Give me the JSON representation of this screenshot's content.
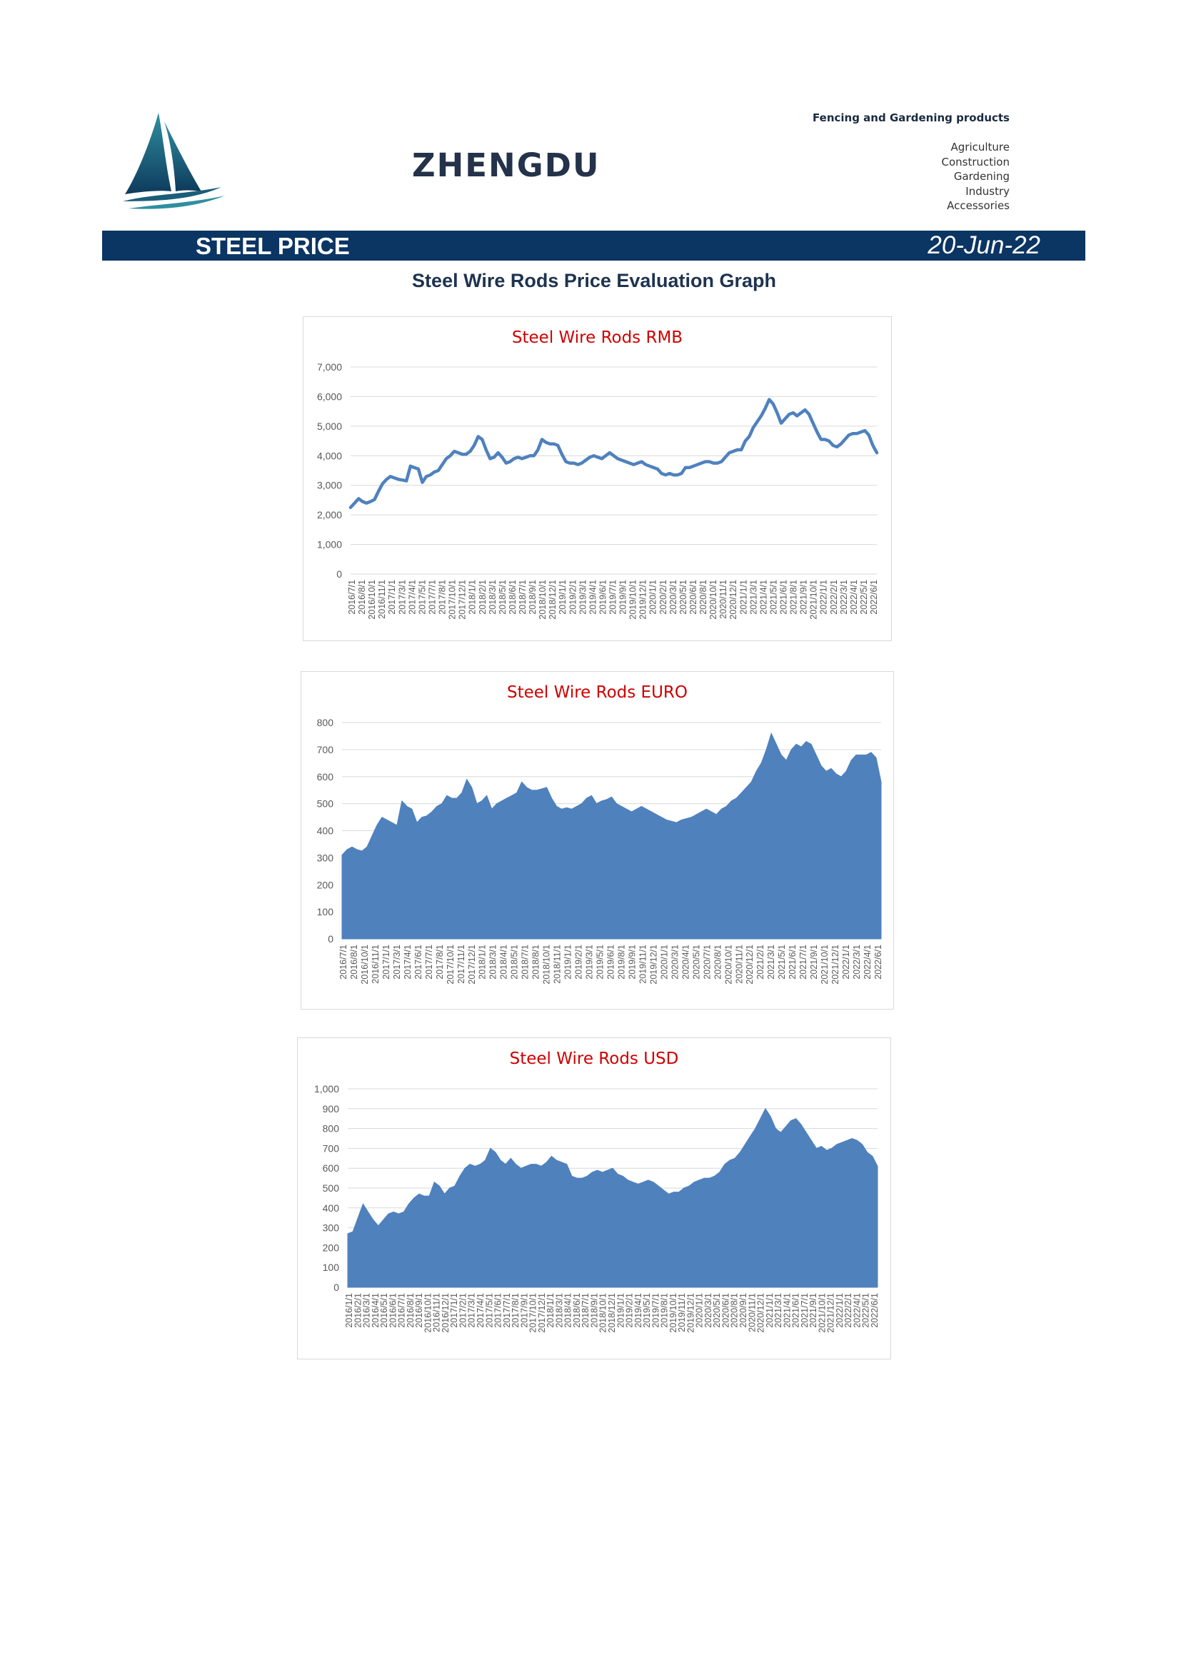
{
  "header": {
    "brand": "ZHENGDU",
    "tagline": "Fencing and Gardening products",
    "categories": [
      "Agriculture",
      "Construction",
      "Gardening",
      "Industry",
      "Accessories"
    ],
    "logo_icon": "sailboat-logo-icon"
  },
  "banner": {
    "title": "STEEL PRICE",
    "date": "20-Jun-22",
    "color": "#0b3563"
  },
  "page_title": "Steel Wire Rods Price Evaluation Graph",
  "chart_data": [
    {
      "id": "rmb",
      "type": "line",
      "title": "Steel Wire Rods RMB",
      "ylim": [
        0,
        7000
      ],
      "yticks": [
        0,
        1000,
        2000,
        3000,
        4000,
        5000,
        6000,
        7000
      ],
      "ytick_labels": [
        "0",
        "1,000",
        "2,000",
        "3,000",
        "4,000",
        "5,000",
        "6,000",
        "7,000"
      ],
      "color": "#4f81bd",
      "xtick_labels": [
        "2016/7/1",
        "2016/8/1",
        "2016/10/1",
        "2016/11/1",
        "2017/1/1",
        "2017/3/1",
        "2017/4/1",
        "2017/5/1",
        "2017/7/1",
        "2017/8/1",
        "2017/10/1",
        "2017/12/1",
        "2018/1/1",
        "2018/2/1",
        "2018/3/1",
        "2018/5/1",
        "2018/6/1",
        "2018/7/1",
        "2018/9/1",
        "2018/10/1",
        "2018/12/1",
        "2019/1/1",
        "2019/2/1",
        "2019/3/1",
        "2019/4/1",
        "2019/6/1",
        "2019/7/1",
        "2019/9/1",
        "2019/10/1",
        "2019/12/1",
        "2020/1/1",
        "2020/2/1",
        "2020/3/1",
        "2020/5/1",
        "2020/6/1",
        "2020/8/1",
        "2020/10/1",
        "2020/11/1",
        "2020/12/1",
        "2021/1/1",
        "2021/3/1",
        "2021/4/1",
        "2021/5/1",
        "2021/6/1",
        "2021/8/1",
        "2021/9/1",
        "2021/10/1",
        "2022/1/1",
        "2022/2/1",
        "2022/3/1",
        "2022/4/1",
        "2022/5/1",
        "2022/6/1"
      ],
      "y": [
        2250,
        2400,
        2550,
        2450,
        2400,
        2450,
        2520,
        2800,
        3050,
        3200,
        3300,
        3250,
        3200,
        3180,
        3150,
        3650,
        3600,
        3550,
        3100,
        3300,
        3350,
        3450,
        3500,
        3700,
        3900,
        4000,
        4150,
        4100,
        4050,
        4050,
        4150,
        4350,
        4650,
        4550,
        4200,
        3900,
        3950,
        4100,
        3950,
        3750,
        3800,
        3900,
        3950,
        3900,
        3950,
        4000,
        4000,
        4200,
        4550,
        4450,
        4400,
        4400,
        4350,
        4050,
        3800,
        3750,
        3750,
        3700,
        3750,
        3850,
        3950,
        4000,
        3950,
        3900,
        4000,
        4100,
        4000,
        3900,
        3850,
        3800,
        3750,
        3700,
        3750,
        3800,
        3700,
        3650,
        3600,
        3550,
        3400,
        3350,
        3400,
        3350,
        3350,
        3400,
        3600,
        3600,
        3650,
        3700,
        3750,
        3800,
        3800,
        3750,
        3750,
        3800,
        3950,
        4100,
        4150,
        4200,
        4200,
        4500,
        4650,
        4950,
        5150,
        5350,
        5600,
        5900,
        5750,
        5450,
        5100,
        5250,
        5400,
        5450,
        5350,
        5450,
        5550,
        5400,
        5100,
        4800,
        4550,
        4550,
        4500,
        4350,
        4300,
        4400,
        4550,
        4700,
        4750,
        4750,
        4800,
        4850,
        4700,
        4350,
        4100
      ]
    },
    {
      "id": "euro",
      "type": "area",
      "title": "Steel Wire Rods EURO",
      "ylim": [
        0,
        800
      ],
      "yticks": [
        0,
        100,
        200,
        300,
        400,
        500,
        600,
        700,
        800
      ],
      "ytick_labels": [
        "0",
        "100",
        "200",
        "300",
        "400",
        "500",
        "600",
        "700",
        "800"
      ],
      "color": "#4f81bd",
      "xtick_labels": [
        "2016/7/1",
        "2016/8/1",
        "2016/10/1",
        "2016/11/1",
        "2017/1/1",
        "2017/3/1",
        "2017/4/1",
        "2017/6/1",
        "2017/7/1",
        "2017/8/1",
        "2017/10/1",
        "2017/11/1",
        "2017/12/1",
        "2018/1/1",
        "2018/3/1",
        "2018/4/1",
        "2018/5/1",
        "2018/7/1",
        "2018/8/1",
        "2018/10/1",
        "2018/11/1",
        "2019/1/1",
        "2019/2/1",
        "2019/3/1",
        "2019/5/1",
        "2019/6/1",
        "2019/8/1",
        "2019/9/1",
        "2019/11/1",
        "2019/12/1",
        "2020/1/1",
        "2020/3/1",
        "2020/4/1",
        "2020/5/1",
        "2020/7/1",
        "2020/8/1",
        "2020/10/1",
        "2020/11/1",
        "2020/12/1",
        "2021/2/1",
        "2021/3/1",
        "2021/5/1",
        "2021/6/1",
        "2021/7/1",
        "2021/9/1",
        "2021/10/1",
        "2021/12/1",
        "2022/1/1",
        "2022/3/1",
        "2022/4/1",
        "2022/6/1"
      ],
      "y": [
        310,
        330,
        340,
        330,
        325,
        340,
        380,
        420,
        450,
        440,
        430,
        420,
        510,
        490,
        480,
        430,
        450,
        455,
        470,
        490,
        500,
        530,
        520,
        520,
        540,
        590,
        560,
        500,
        510,
        530,
        480,
        500,
        510,
        520,
        530,
        540,
        580,
        560,
        550,
        550,
        555,
        560,
        520,
        490,
        480,
        485,
        480,
        490,
        500,
        520,
        530,
        500,
        510,
        515,
        525,
        500,
        490,
        480,
        470,
        480,
        490,
        480,
        470,
        460,
        450,
        440,
        435,
        430,
        440,
        445,
        450,
        460,
        470,
        480,
        470,
        460,
        480,
        490,
        510,
        520,
        540,
        560,
        580,
        620,
        650,
        700,
        760,
        720,
        680,
        660,
        700,
        720,
        710,
        730,
        720,
        680,
        640,
        620,
        630,
        610,
        600,
        620,
        660,
        680,
        680,
        680,
        690,
        670,
        580
      ]
    },
    {
      "id": "usd",
      "type": "area",
      "title": "Steel Wire Rods USD",
      "ylim": [
        0,
        1000
      ],
      "yticks": [
        0,
        100,
        200,
        300,
        400,
        500,
        600,
        700,
        800,
        900,
        1000
      ],
      "ytick_labels": [
        "0",
        "100",
        "200",
        "300",
        "400",
        "500",
        "600",
        "700",
        "800",
        "900",
        "1,000"
      ],
      "color": "#4f81bd",
      "xtick_labels": [
        "2016/1/1",
        "2016/2/1",
        "2016/3/1",
        "2016/4/1",
        "2016/5/1",
        "2016/6/1",
        "2016/7/1",
        "2016/8/1",
        "2016/9/1",
        "2016/10/1",
        "2016/11/1",
        "2016/12/1",
        "2017/1/1",
        "2017/2/1",
        "2017/3/1",
        "2017/4/1",
        "2017/5/1",
        "2017/6/1",
        "2017/7/1",
        "2017/8/1",
        "2017/9/1",
        "2017/10/1",
        "2017/12/1",
        "2018/1/1",
        "2018/3/1",
        "2018/4/1",
        "2018/6/1",
        "2018/7/1",
        "2018/9/1",
        "2018/10/1",
        "2018/12/1",
        "2019/1/1",
        "2019/2/1",
        "2019/4/1",
        "2019/5/1",
        "2019/7/1",
        "2019/8/1",
        "2019/10/1",
        "2019/11/1",
        "2019/12/1",
        "2020/1/1",
        "2020/3/1",
        "2020/5/1",
        "2020/6/1",
        "2020/8/1",
        "2020/9/1",
        "2020/11/1",
        "2020/12/1",
        "2021/1/1",
        "2021/3/1",
        "2021/4/1",
        "2021/6/1",
        "2021/7/1",
        "2021/9/1",
        "2021/10/1",
        "2021/12/1",
        "2022/1/1",
        "2022/2/1",
        "2022/4/1",
        "2022/5/1",
        "2022/6/1"
      ],
      "y": [
        270,
        280,
        350,
        420,
        380,
        340,
        310,
        340,
        370,
        380,
        370,
        380,
        420,
        450,
        470,
        460,
        460,
        530,
        510,
        470,
        500,
        510,
        560,
        600,
        620,
        610,
        620,
        640,
        700,
        680,
        640,
        620,
        650,
        620,
        600,
        610,
        620,
        620,
        610,
        630,
        660,
        640,
        630,
        620,
        560,
        550,
        550,
        560,
        580,
        590,
        580,
        590,
        600,
        570,
        560,
        540,
        530,
        520,
        530,
        540,
        530,
        510,
        490,
        470,
        480,
        480,
        500,
        510,
        530,
        540,
        550,
        550,
        560,
        580,
        620,
        640,
        650,
        680,
        720,
        760,
        800,
        850,
        900,
        860,
        800,
        780,
        810,
        840,
        850,
        820,
        780,
        740,
        700,
        710,
        690,
        700,
        720,
        730,
        740,
        750,
        740,
        720,
        680,
        660,
        610
      ]
    }
  ]
}
